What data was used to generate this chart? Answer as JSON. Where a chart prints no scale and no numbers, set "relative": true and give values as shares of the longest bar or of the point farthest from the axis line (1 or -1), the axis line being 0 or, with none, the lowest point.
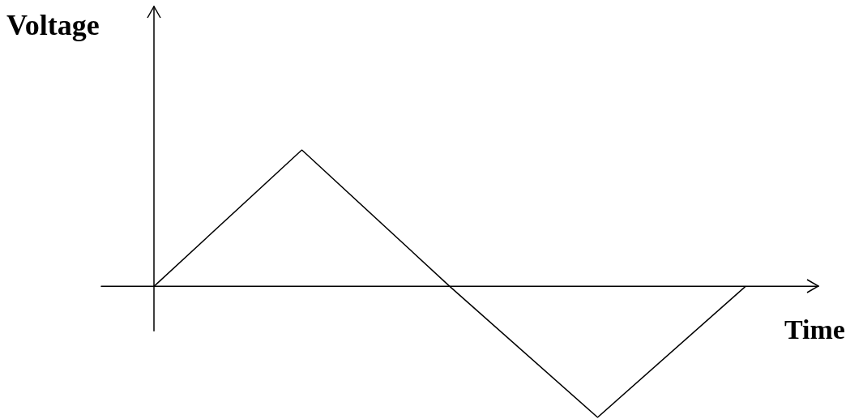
{
  "chart_data": {
    "type": "line",
    "relative": true,
    "xlabel": "Time",
    "ylabel": "Voltage",
    "categories": [
      null,
      null,
      null,
      null,
      null
    ],
    "series": [
      {
        "color": "#000000",
        "values": [
          0,
          1,
          0,
          -0.96,
          0
        ]
      }
    ],
    "grid": false,
    "legend": false,
    "marker": "none",
    "line_style": "solid"
  }
}
